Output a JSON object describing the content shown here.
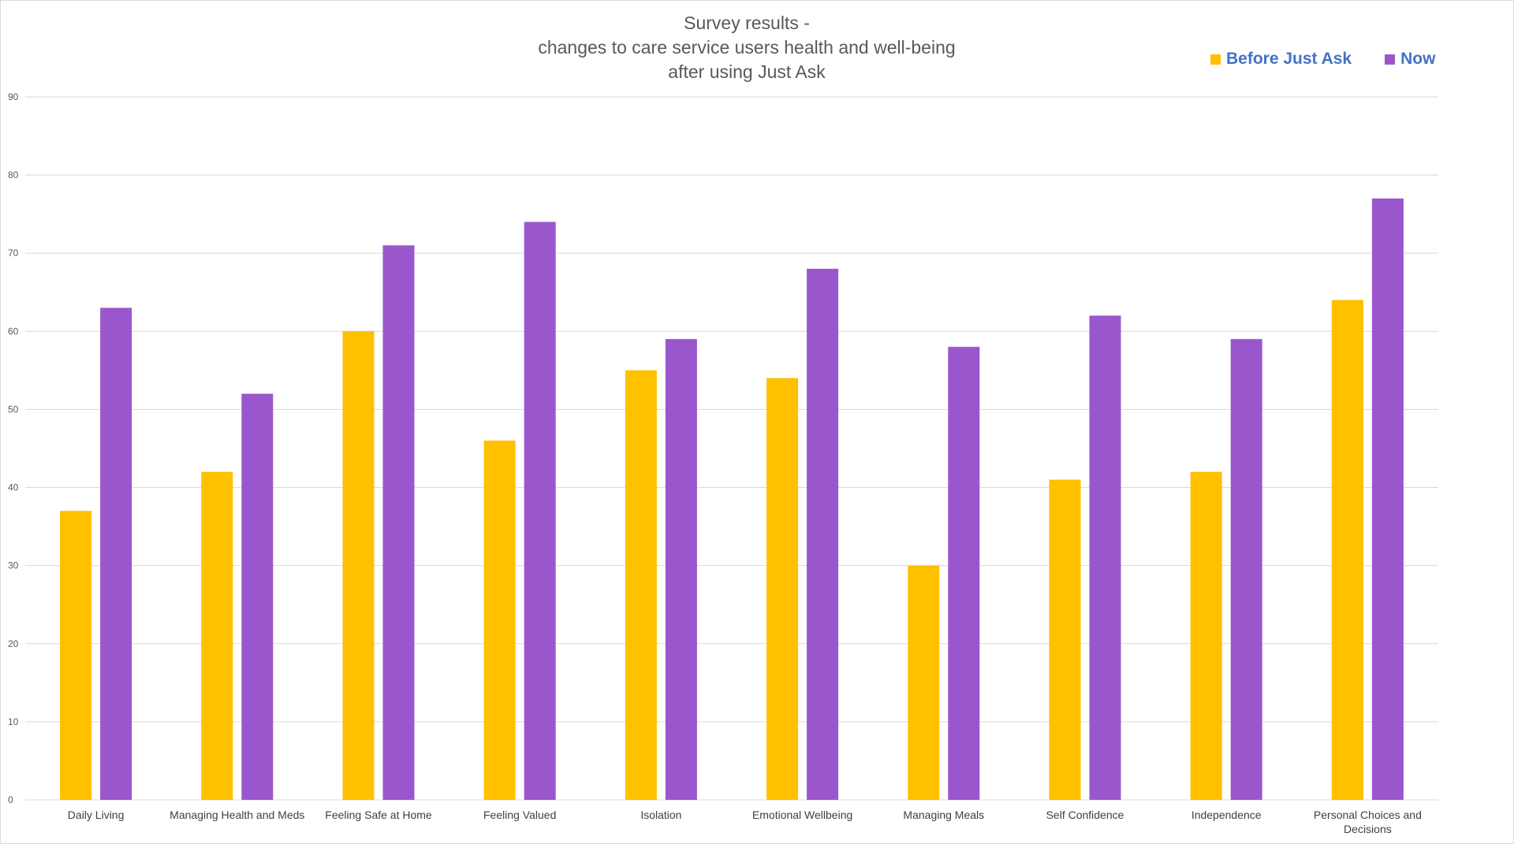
{
  "colors": {
    "before": "#FFC000",
    "now": "#9A57CD",
    "legend_text": "#4472C4",
    "grid": "#d9d9d9",
    "axis_text": "#595959"
  },
  "chart_data": {
    "type": "bar",
    "title_lines": [
      "Survey results -",
      "changes to care service users health and well-being",
      "after using Just Ask"
    ],
    "xlabel": "",
    "ylabel": "",
    "ylim": [
      0,
      90
    ],
    "yticks": [
      0,
      10,
      20,
      30,
      40,
      50,
      60,
      70,
      80,
      90
    ],
    "grid": true,
    "legend_position": "top-right",
    "categories": [
      "Daily Living",
      "Managing Health and Meds",
      "Feeling Safe at Home",
      "Feeling Valued",
      "Isolation",
      "Emotional Wellbeing",
      "Managing Meals",
      "Self Confidence",
      "Independence",
      "Personal Choices and Decisions"
    ],
    "series": [
      {
        "name": "Before Just Ask",
        "color": "#FFC000",
        "values": [
          37,
          42,
          60,
          46,
          55,
          54,
          30,
          41,
          42,
          64
        ]
      },
      {
        "name": "Now",
        "color": "#9A57CD",
        "values": [
          63,
          52,
          71,
          74,
          59,
          68,
          58,
          62,
          59,
          77
        ]
      }
    ]
  }
}
